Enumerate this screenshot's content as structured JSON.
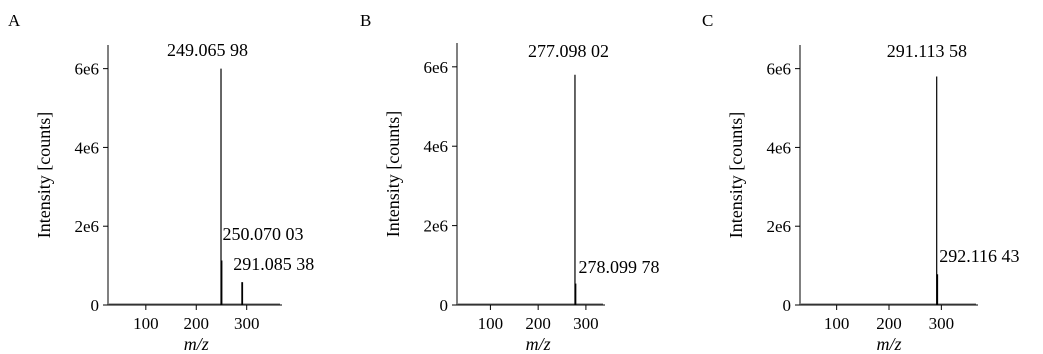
{
  "chart_data": [
    {
      "type": "bar",
      "panel": "A",
      "ylabel": "Intensity [counts]",
      "xlabel": "m/z",
      "xlim": [
        25,
        370
      ],
      "ylim": [
        0,
        6600000
      ],
      "xticks": [
        100,
        200,
        300
      ],
      "yticks": [
        0,
        2000000,
        4000000,
        6000000
      ],
      "ytick_labels": [
        "0",
        "2e6",
        "4e6",
        "6e6"
      ],
      "peaks": [
        {
          "mz": 249.06598,
          "intensity": 6000000,
          "label": "249.065 98"
        },
        {
          "mz": 250.07003,
          "intensity": 1130000,
          "label": "250.070 03"
        },
        {
          "mz": 291.08538,
          "intensity": 580000,
          "label": "291.085 38"
        }
      ]
    },
    {
      "type": "bar",
      "panel": "B",
      "ylabel": "Intensity [counts]",
      "xlabel": "m/z",
      "xlim": [
        30,
        340
      ],
      "ylim": [
        0,
        6600000
      ],
      "xticks": [
        100,
        200,
        300
      ],
      "yticks": [
        0,
        2000000,
        4000000,
        6000000
      ],
      "ytick_labels": [
        "0",
        "2e6",
        "4e6",
        "6e6"
      ],
      "peaks": [
        {
          "mz": 277.09802,
          "intensity": 5800000,
          "label": "277.098 02"
        },
        {
          "mz": 278.09978,
          "intensity": 540000,
          "label": "278.099 78"
        }
      ]
    },
    {
      "type": "bar",
      "panel": "C",
      "ylabel": "Intensity [counts]",
      "xlabel": "m/z",
      "xlim": [
        30,
        370
      ],
      "ylim": [
        0,
        6600000
      ],
      "xticks": [
        100,
        200,
        300
      ],
      "yticks": [
        0,
        2000000,
        4000000,
        6000000
      ],
      "ytick_labels": [
        "0",
        "2e6",
        "4e6",
        "6e6"
      ],
      "peaks": [
        {
          "mz": 291.11358,
          "intensity": 5800000,
          "label": "291.113 58"
        },
        {
          "mz": 292.11643,
          "intensity": 780000,
          "label": "292.116 43"
        }
      ]
    }
  ]
}
